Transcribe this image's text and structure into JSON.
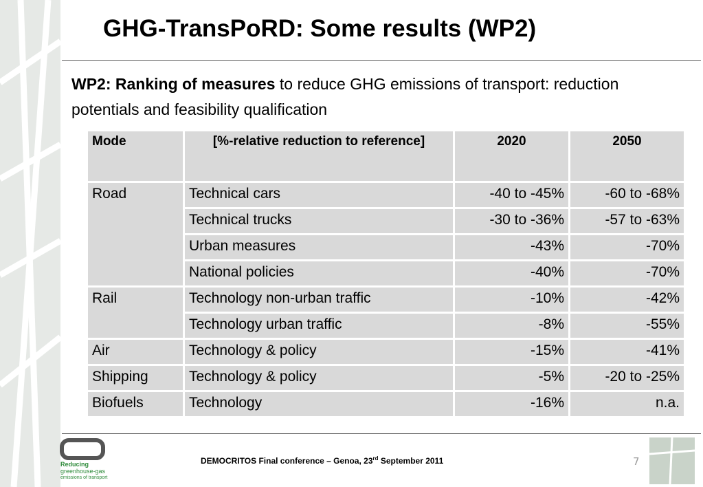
{
  "header": {
    "title": "GHG-TransPoRD: Some results (WP2)"
  },
  "intro": {
    "bold": "WP2: Ranking of measures",
    "rest": "to reduce GHG emissions of transport: reduction potentials and feasibility qualification"
  },
  "table": {
    "columns": [
      "Mode",
      "[%-relative reduction to reference]",
      "2020",
      "2050"
    ],
    "groups": [
      {
        "mode": "Road",
        "rows": [
          [
            "Technical cars",
            "-40 to -45%",
            "-60 to -68%"
          ],
          [
            "Technical trucks",
            "-30 to -36%",
            "-57 to -63%"
          ],
          [
            "Urban measures",
            "-43%",
            "-70%"
          ],
          [
            "National policies",
            "-40%",
            "-70%"
          ]
        ]
      },
      {
        "mode": "Rail",
        "rows": [
          [
            "Technology non-urban traffic",
            "-10%",
            "-42%"
          ],
          [
            "Technology urban traffic",
            "-8%",
            "-55%"
          ]
        ]
      },
      {
        "mode": "Air",
        "rows": [
          [
            "Technology & policy",
            "-15%",
            "-41%"
          ]
        ]
      },
      {
        "mode": "Shipping",
        "rows": [
          [
            "Technology & policy",
            "-5%",
            "-20 to -25%"
          ]
        ]
      },
      {
        "mode": "Biofuels",
        "rows": [
          [
            "Technology",
            "-16%",
            "n.a."
          ]
        ]
      }
    ]
  },
  "footer": {
    "before": "DEMOCRITOS Final conference – Genoa, 23",
    "sup": "rd",
    "after": " September 2011",
    "page": "7"
  },
  "logo": {
    "line1": "Reducing",
    "line2": "greenhouse-gas",
    "line3": "emissions of transport"
  }
}
